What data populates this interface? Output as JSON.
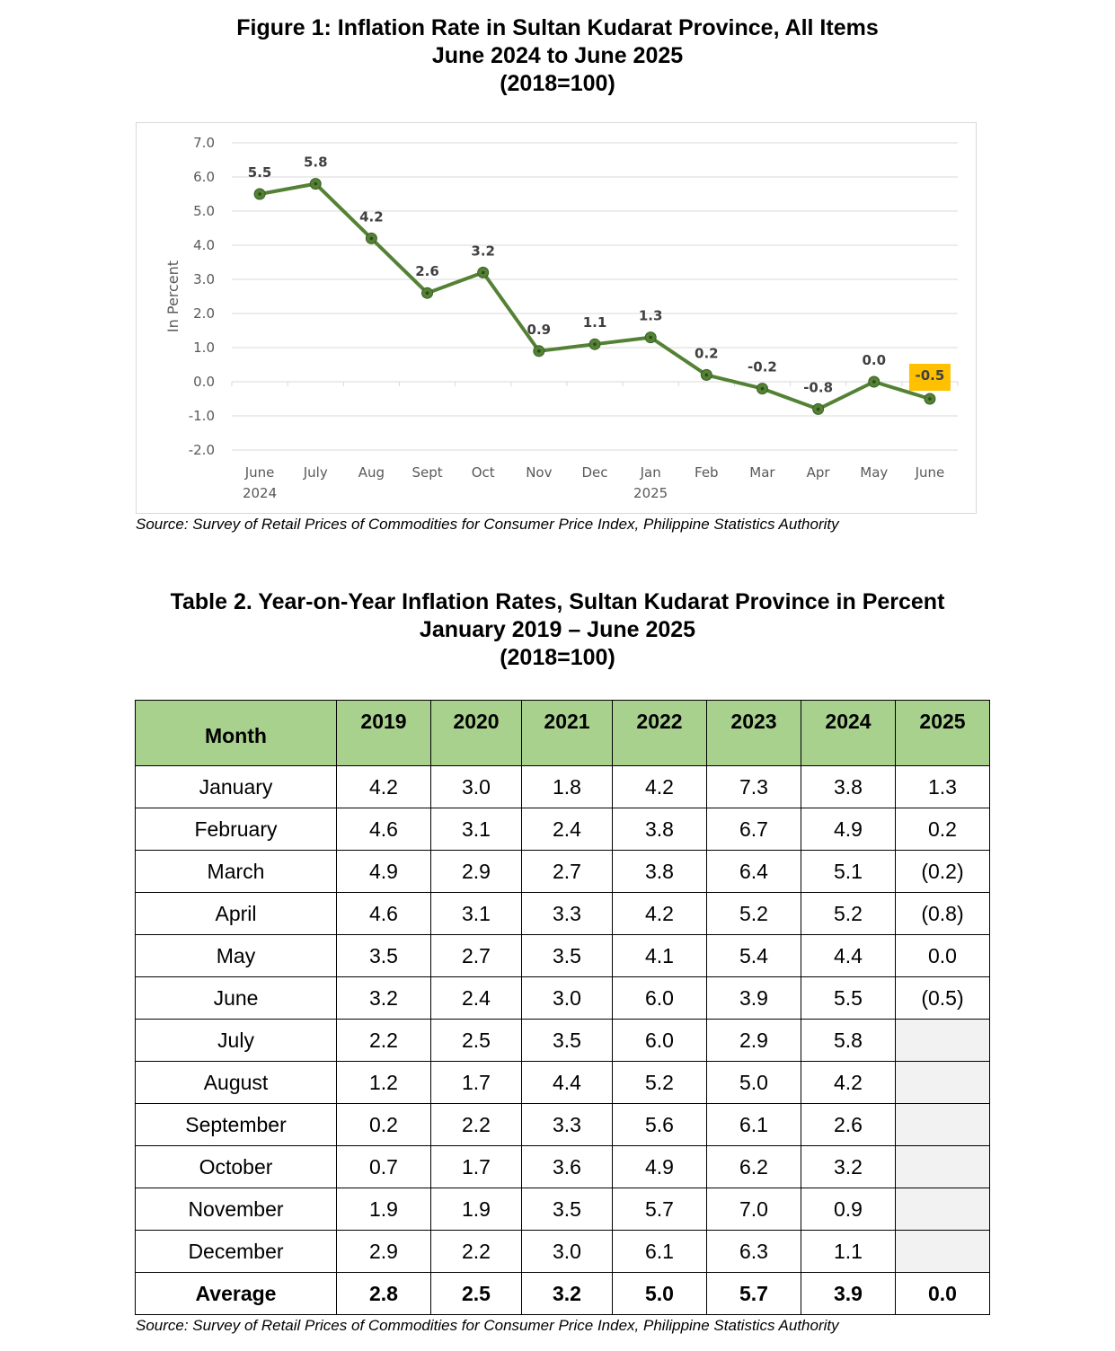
{
  "figure": {
    "title_line1": "Figure 1: Inflation Rate in Sultan Kudarat Province, All Items",
    "title_line2": "June 2024 to June 2025",
    "title_line3": "(2018=100)",
    "source": "Source: Survey of Retail Prices of Commodities for Consumer Price Index, Philippine Statistics Authority"
  },
  "chart_data": {
    "type": "line",
    "title": "Figure 1: Inflation Rate in Sultan Kudarat Province, All Items June 2024 to June 2025 (2018=100)",
    "ylabel": "In Percent",
    "ylim": [
      -2.0,
      7.0
    ],
    "ytick_step": 1.0,
    "yticks": [
      "7.0",
      "6.0",
      "5.0",
      "4.0",
      "3.0",
      "2.0",
      "1.0",
      "0.0",
      "-1.0",
      "-2.0"
    ],
    "grid": true,
    "categories": [
      "June",
      "July",
      "Aug",
      "Sept",
      "Oct",
      "Nov",
      "Dec",
      "Jan",
      "Feb",
      "Mar",
      "Apr",
      "May",
      "June"
    ],
    "category_sublabels": [
      "2024",
      "",
      "",
      "",
      "",
      "",
      "",
      "2025",
      "",
      "",
      "",
      "",
      ""
    ],
    "series": [
      {
        "values": [
          5.5,
          5.8,
          4.2,
          2.6,
          3.2,
          0.9,
          1.1,
          1.3,
          0.2,
          -0.2,
          -0.8,
          0.0,
          -0.5
        ],
        "labels": [
          "5.5",
          "5.8",
          "4.2",
          "2.6",
          "3.2",
          "0.9",
          "1.1",
          "1.3",
          "0.2",
          "-0.2",
          "-0.8",
          "0.0",
          "-0.5"
        ],
        "color": "#548235",
        "highlight_index": 12,
        "highlight_color": "#ffc000"
      }
    ]
  },
  "table": {
    "title_line1": "Table 2. Year-on-Year Inflation Rates, Sultan Kudarat Province in Percent",
    "title_line2": "January 2019 – June 2025",
    "title_line3": "(2018=100)",
    "header_color": "#a9d18e",
    "headers": [
      "Month",
      "2019",
      "2020",
      "2021",
      "2022",
      "2023",
      "2024",
      "2025"
    ],
    "rows": [
      [
        "January",
        "4.2",
        "3.0",
        "1.8",
        "4.2",
        "7.3",
        "3.8",
        "1.3"
      ],
      [
        "February",
        "4.6",
        "3.1",
        "2.4",
        "3.8",
        "6.7",
        "4.9",
        "0.2"
      ],
      [
        "March",
        "4.9",
        "2.9",
        "2.7",
        "3.8",
        "6.4",
        "5.1",
        "(0.2)"
      ],
      [
        "April",
        "4.6",
        "3.1",
        "3.3",
        "4.2",
        "5.2",
        "5.2",
        "(0.8)"
      ],
      [
        "May",
        "3.5",
        "2.7",
        "3.5",
        "4.1",
        "5.4",
        "4.4",
        "0.0"
      ],
      [
        "June",
        "3.2",
        "2.4",
        "3.0",
        "6.0",
        "3.9",
        "5.5",
        "(0.5)"
      ],
      [
        "July",
        "2.2",
        "2.5",
        "3.5",
        "6.0",
        "2.9",
        "5.8",
        ""
      ],
      [
        "August",
        "1.2",
        "1.7",
        "4.4",
        "5.2",
        "5.0",
        "4.2",
        ""
      ],
      [
        "September",
        "0.2",
        "2.2",
        "3.3",
        "5.6",
        "6.1",
        "2.6",
        ""
      ],
      [
        "October",
        "0.7",
        "1.7",
        "3.6",
        "4.9",
        "6.2",
        "3.2",
        ""
      ],
      [
        "November",
        "1.9",
        "1.9",
        "3.5",
        "5.7",
        "7.0",
        "0.9",
        ""
      ],
      [
        "December",
        "2.9",
        "2.2",
        "3.0",
        "6.1",
        "6.3",
        "1.1",
        ""
      ]
    ],
    "average": [
      "Average",
      "2.8",
      "2.5",
      "3.2",
      "5.0",
      "5.7",
      "3.9",
      "0.0"
    ],
    "source": "Source: Survey of Retail Prices of Commodities for Consumer Price Index, Philippine Statistics Authority"
  }
}
